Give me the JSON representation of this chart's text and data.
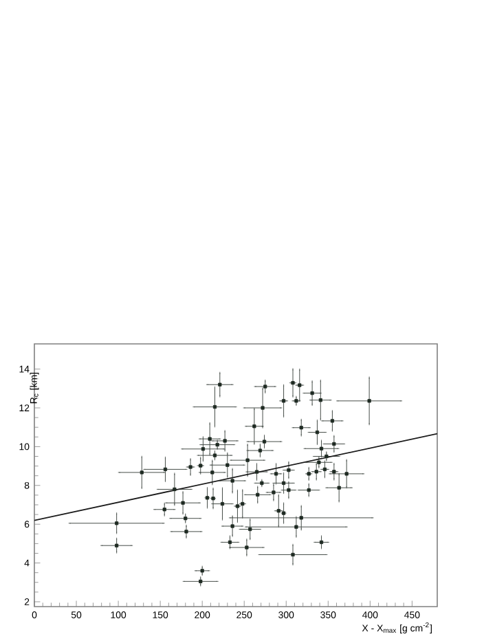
{
  "chart_data": {
    "type": "scatter",
    "xlabel": "X - X$_{max}$ [g cm$^{-2}$]",
    "ylabel": "R$_{c}$ [km]",
    "xlim": [
      0,
      480
    ],
    "ylim": [
      1.75,
      15.3
    ],
    "xticks": [
      0,
      50,
      100,
      150,
      200,
      250,
      300,
      350,
      400,
      450
    ],
    "yticks": [
      2,
      4,
      6,
      8,
      10,
      12,
      14
    ],
    "grid": false,
    "marker": "square",
    "series": [
      {
        "color": "#1e2a22",
        "x": [
          128,
          98,
          98,
          200,
          198,
          155,
          156,
          167,
          181,
          180,
          177,
          186,
          198,
          201,
          206,
          213,
          215,
          221,
          209,
          218,
          227,
          215,
          212,
          230,
          236,
          224,
          233,
          236,
          242,
          248,
          253,
          257,
          254,
          266,
          269,
          262,
          272,
          275,
          274,
          265,
          308,
          316,
          331,
          341,
          399,
          312,
          297,
          318,
          355,
          337,
          357,
          342,
          348,
          339,
          336,
          346,
          357,
          372,
          327,
          303,
          288,
          271,
          297,
          363,
          327,
          303,
          285,
          291,
          297,
          318,
          312,
          342,
          308
        ],
        "values": [
          8.67,
          6.05,
          4.9,
          3.6,
          3.05,
          6.76,
          8.83,
          7.8,
          5.62,
          6.3,
          7.1,
          8.95,
          9.02,
          9.88,
          7.36,
          7.33,
          12.05,
          13.2,
          10.4,
          10.1,
          10.3,
          9.55,
          8.67,
          9.05,
          8.24,
          7.05,
          5.07,
          5.9,
          6.93,
          7.05,
          4.8,
          5.74,
          9.3,
          7.52,
          9.8,
          11.05,
          12.0,
          13.1,
          10.26,
          8.7,
          13.29,
          13.17,
          12.76,
          12.4,
          12.36,
          12.36,
          12.36,
          10.98,
          11.33,
          10.74,
          10.14,
          9.9,
          9.5,
          9.19,
          8.71,
          8.83,
          8.71,
          8.6,
          8.6,
          8.79,
          8.6,
          8.12,
          8.12,
          7.88,
          7.76,
          7.76,
          7.64,
          6.69,
          6.57,
          6.33,
          5.86,
          5.07,
          4.43
        ],
        "xerrors": [
          27,
          56,
          18,
          8,
          20,
          12,
          25,
          20,
          18,
          18,
          20,
          4,
          3,
          25,
          2,
          2,
          25,
          15,
          12,
          20,
          15,
          20,
          15,
          20,
          15,
          12,
          10,
          12,
          3,
          3,
          20,
          12,
          20,
          15,
          15,
          10,
          22,
          12,
          20,
          12,
          3,
          4,
          10,
          12,
          38,
          4,
          4,
          10,
          12,
          10,
          12,
          20,
          15,
          15,
          5,
          4,
          4,
          20,
          3,
          6,
          6,
          8,
          12,
          15,
          12,
          8,
          8,
          4,
          2,
          85,
          60,
          8,
          40
        ],
        "errors": [
          0.8,
          0.5,
          0.35,
          0.2,
          0.2,
          0.3,
          0.6,
          0.8,
          0.3,
          0.2,
          0.55,
          0.4,
          0.4,
          0.6,
          0.5,
          0.5,
          1.0,
          0.6,
          0.8,
          0.2,
          0.5,
          0.2,
          0.6,
          0.6,
          0.6,
          0.8,
          0.3,
          0.5,
          0.8,
          0.7,
          0.4,
          0.5,
          0.8,
          0.4,
          0.3,
          0.9,
          1.0,
          0.3,
          0.3,
          0.4,
          0.7,
          0.8,
          0.6,
          1.0,
          1.2,
          0.2,
          0.8,
          0.4,
          0.5,
          0.6,
          0.4,
          0.4,
          0.2,
          0.25,
          0.4,
          0.4,
          0.4,
          0.7,
          0.3,
          0.4,
          0.5,
          0.15,
          0.5,
          0.7,
          0.3,
          0.4,
          0.4,
          0.8,
          0.5,
          0.6,
          0.5,
          0.3,
          0.5
        ]
      },
      {
        "type": "line",
        "color": "#1a1a1a",
        "marker": "none",
        "x": [
          0,
          480
        ],
        "values": [
          6.2,
          10.67
        ]
      }
    ]
  }
}
